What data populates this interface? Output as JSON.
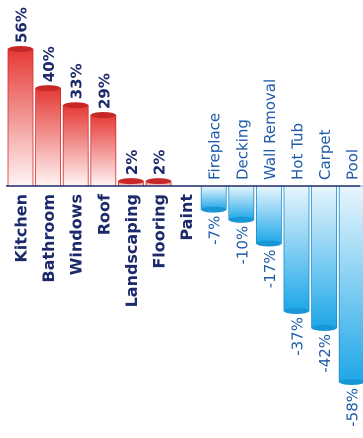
{
  "colors": {
    "positive_top": "#e53935",
    "positive_bottom": "#ffffff",
    "negative_top": "#ffffff",
    "negative_bottom": "#1ea7e8",
    "positive_text": "#1c2a6b",
    "negative_text": "#1f5ba8",
    "baseline": "#1c2a6b"
  },
  "chart_data": {
    "type": "bar",
    "title": "",
    "xlabel": "",
    "ylabel": "",
    "ylim": [
      -58,
      56
    ],
    "grid": false,
    "legend": "none",
    "categories": [
      "Kitchen",
      "Bathroom",
      "Windows",
      "Roof",
      "Landscaping",
      "Flooring",
      "Paint",
      "Fireplace",
      "Decking",
      "Wall Removal",
      "Hot Tub",
      "Carpet",
      "Pool"
    ],
    "values": [
      56,
      40,
      33,
      29,
      2,
      2,
      0,
      -7,
      -10,
      -17,
      -37,
      -42,
      -58
    ],
    "value_labels": [
      "56%",
      "40%",
      "33%",
      "29%",
      "2%",
      "2%",
      "",
      "-7%",
      "-10%",
      "-17%",
      "-37%",
      "-42%",
      "-58%"
    ]
  }
}
